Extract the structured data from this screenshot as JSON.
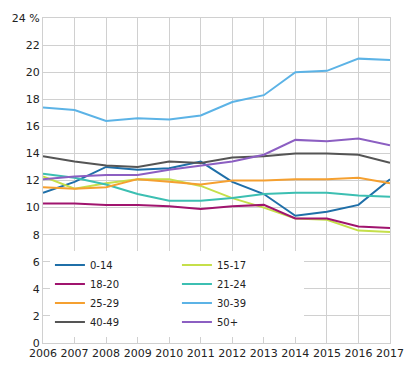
{
  "chart_data": {
    "type": "line",
    "x": [
      2006,
      2007,
      2008,
      2009,
      2010,
      2011,
      2012,
      2013,
      2014,
      2015,
      2016,
      2017
    ],
    "series": [
      {
        "name": "0-14",
        "color": "#1f6fa8",
        "values": [
          11.1,
          11.9,
          13.0,
          12.8,
          12.9,
          13.4,
          11.9,
          11.0,
          9.4,
          9.7,
          10.2,
          12.1
        ]
      },
      {
        "name": "15-17",
        "color": "#c5df4a",
        "values": [
          12.3,
          11.4,
          11.8,
          12.1,
          12.1,
          11.6,
          10.7,
          10.0,
          9.2,
          9.1,
          8.3,
          8.2
        ]
      },
      {
        "name": "18-20",
        "color": "#a0146e",
        "values": [
          10.3,
          10.3,
          10.2,
          10.2,
          10.1,
          9.9,
          10.1,
          10.2,
          9.2,
          9.2,
          8.6,
          8.5
        ]
      },
      {
        "name": "21-24",
        "color": "#3cbfb2",
        "values": [
          12.5,
          12.2,
          11.7,
          11.0,
          10.5,
          10.5,
          10.7,
          11.0,
          11.1,
          11.1,
          10.9,
          10.8
        ]
      },
      {
        "name": "25-29",
        "color": "#f5a030",
        "values": [
          11.5,
          11.4,
          11.5,
          12.1,
          11.9,
          11.7,
          12.0,
          12.0,
          12.1,
          12.1,
          12.2,
          11.8
        ]
      },
      {
        "name": "30-39",
        "color": "#5cb3e6",
        "values": [
          17.4,
          17.2,
          16.4,
          16.6,
          16.5,
          16.8,
          17.8,
          18.3,
          20.0,
          20.1,
          21.0,
          20.9
        ]
      },
      {
        "name": "40-49",
        "color": "#555555",
        "values": [
          13.8,
          13.4,
          13.1,
          13.0,
          13.4,
          13.3,
          13.7,
          13.8,
          14.0,
          14.0,
          13.9,
          13.3
        ]
      },
      {
        "name": "50+",
        "color": "#8c5fc2",
        "values": [
          12.1,
          12.3,
          12.4,
          12.4,
          12.8,
          13.1,
          13.4,
          13.9,
          15.0,
          14.9,
          15.1,
          14.6
        ]
      }
    ],
    "xlim": [
      2006,
      2017
    ],
    "xticks": [
      2006,
      2007,
      2008,
      2009,
      2010,
      2011,
      2012,
      2013,
      2014,
      2015,
      2016,
      2017
    ],
    "ylim": [
      0,
      24
    ],
    "yticks": [
      0,
      2,
      4,
      6,
      8,
      10,
      12,
      14,
      16,
      18,
      20,
      22,
      {
        "value": 24,
        "label": "24 %"
      }
    ],
    "grid": true,
    "legend": "lower left"
  }
}
